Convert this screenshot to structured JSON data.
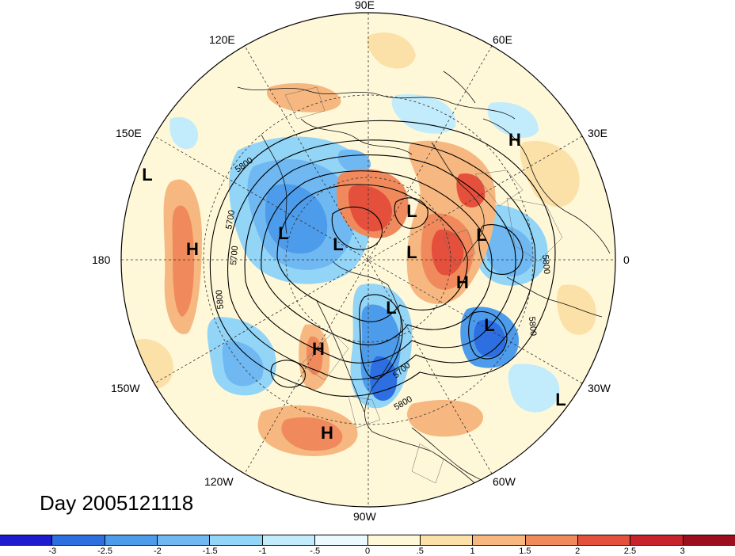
{
  "lon_labels": {
    "e90": "90E",
    "e60": "60E",
    "e30": "30E",
    "zero": "0",
    "w30": "30W",
    "w60": "60W",
    "w90": "90W",
    "w120": "120W",
    "w150": "150W",
    "e180": "180",
    "e150": "150E",
    "e120": "120E"
  },
  "date_label": "Day 2005121118",
  "pressure_centers": {
    "low": "L",
    "high": "H"
  },
  "contour_labels": {
    "c5700": "5700",
    "c5800": "5800"
  },
  "colorbar": {
    "ticks": [
      "-3",
      "-2.5",
      "-2",
      "-1.5",
      "-1",
      "-.5",
      "0",
      ".5",
      "1",
      "1.5",
      "2",
      "2.5",
      "3"
    ],
    "colors": [
      "#1d1bd0",
      "#2d6ee0",
      "#4d9cec",
      "#6fb8f2",
      "#93d5f7",
      "#c2ecfb",
      "#eafaff",
      "#fff8d8",
      "#fbe0a8",
      "#f6b880",
      "#f08a5c",
      "#e4503c",
      "#c8222c",
      "#9c0e1e"
    ]
  },
  "map_colors": {
    "background": "#fff8d8",
    "warm1": "#fbe0a8",
    "warm2": "#f6b880",
    "warm3": "#f08a5c",
    "warm4": "#e4503c",
    "cool1": "#c2ecfb",
    "cool2": "#93d5f7",
    "cool3": "#6fb8f2",
    "cool4": "#4d9cec",
    "cool5": "#2d6ee0"
  }
}
